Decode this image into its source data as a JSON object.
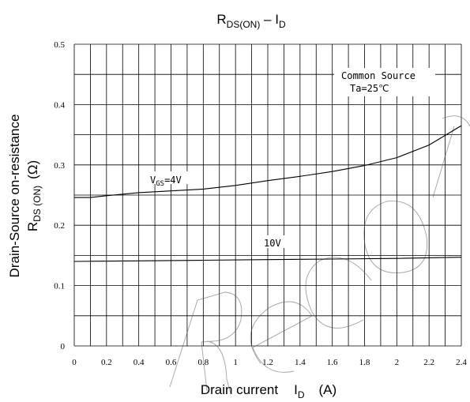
{
  "chart_data": {
    "type": "line",
    "title": {
      "main": "R",
      "sub": "DS(ON)",
      "rest": " – I",
      "sub2": "D"
    },
    "xlabel": {
      "prefix": "Drain current",
      "sym": "I",
      "sub": "D",
      "unit": "(A)"
    },
    "ylabel": {
      "line1": "Drain-Source on-resistance",
      "sym": "R",
      "sub": "DS (ON)",
      "unit": "(Ω)"
    },
    "xlim": [
      0,
      2.4
    ],
    "ylim": [
      0,
      0.5
    ],
    "x_ticks": [
      "0",
      "0.2",
      "0.4",
      "0.6",
      "0.8",
      "1",
      "1.2",
      "1.4",
      "1.6",
      "1.8",
      "2",
      "2.2",
      "2.4"
    ],
    "y_ticks": [
      "0",
      "0.1",
      "0.2",
      "0.3",
      "0.4",
      "0.5"
    ],
    "grid": true,
    "conditions": {
      "line1": "Common Source",
      "line2": "Ta=25℃"
    },
    "series": [
      {
        "label": {
          "prefix": "V",
          "sub": "GS",
          "suffix": "=4V"
        },
        "points": [
          [
            0,
            0.246
          ],
          [
            0.1,
            0.246
          ],
          [
            0.2,
            0.249
          ],
          [
            0.4,
            0.254
          ],
          [
            0.6,
            0.257
          ],
          [
            0.8,
            0.26
          ],
          [
            1.0,
            0.266
          ],
          [
            1.2,
            0.274
          ],
          [
            1.4,
            0.281
          ],
          [
            1.6,
            0.289
          ],
          [
            1.8,
            0.299
          ],
          [
            2.0,
            0.312
          ],
          [
            2.2,
            0.333
          ],
          [
            2.4,
            0.365
          ]
        ]
      },
      {
        "label": {
          "prefix": "",
          "sub": "",
          "suffix": "10V"
        },
        "points": [
          [
            0,
            0.14
          ],
          [
            0.4,
            0.141
          ],
          [
            0.8,
            0.142
          ],
          [
            1.2,
            0.143
          ],
          [
            1.6,
            0.144
          ],
          [
            2.0,
            0.145
          ],
          [
            2.4,
            0.147
          ]
        ]
      }
    ]
  }
}
